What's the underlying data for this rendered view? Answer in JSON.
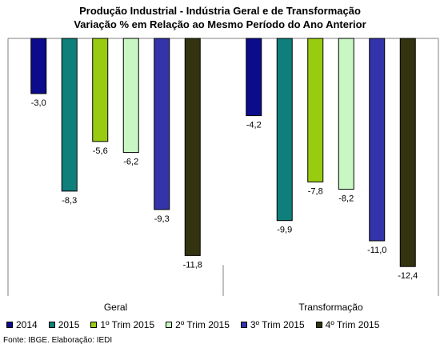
{
  "chart_data": {
    "type": "bar",
    "title": "Produção Industrial - Indústria Geral e de Transformação",
    "subtitle": "Variação % em Relação ao Mesmo Período do Ano Anterior",
    "categories": [
      "Geral",
      "Transformação"
    ],
    "series": [
      {
        "name": "2014",
        "values": [
          -3.0,
          -4.2
        ],
        "labels": [
          "-3,0",
          "-4,2"
        ],
        "color": "#0b0b8c"
      },
      {
        "name": "2015",
        "values": [
          -8.3,
          -9.9
        ],
        "labels": [
          "-8,3",
          "-9,9"
        ],
        "color": "#0e7f7b"
      },
      {
        "name": "1º Trim 2015",
        "values": [
          -5.6,
          -7.8
        ],
        "labels": [
          "-5,6",
          "-7,8"
        ],
        "color": "#99cc11"
      },
      {
        "name": "2º Trim 2015",
        "values": [
          -6.2,
          -8.2
        ],
        "labels": [
          "-6,2",
          "-8,2"
        ],
        "color": "#c9f7c3"
      },
      {
        "name": "3º Trim 2015",
        "values": [
          -9.3,
          -11.0
        ],
        "labels": [
          "-9,3",
          "-11,0"
        ],
        "color": "#3333aa"
      },
      {
        "name": "4º Trim 2015",
        "values": [
          -11.8,
          -12.4
        ],
        "labels": [
          "-11,8",
          "-12,4"
        ],
        "color": "#333310"
      }
    ],
    "ylim": [
      -14,
      0
    ],
    "grid": false,
    "legend_position": "bottom"
  },
  "source": "Fonte: IBGE. Elaboração: IEDI"
}
